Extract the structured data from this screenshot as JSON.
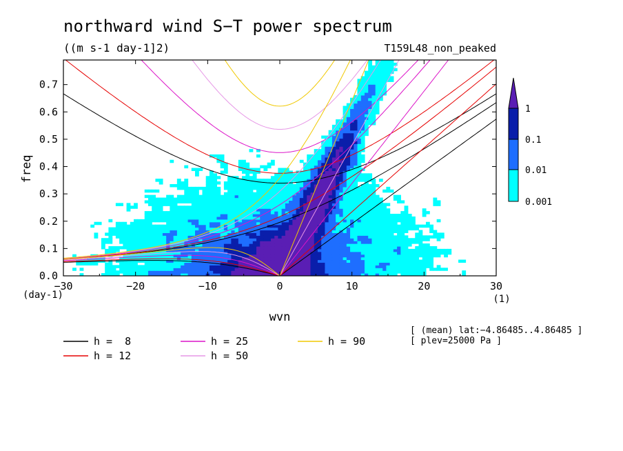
{
  "chart_data": {
    "type": "heatmap",
    "title": "northward wind S−T power spectrum",
    "subtitle": "((m s-1 day-1]2)",
    "run_label": "T159L48_non_peaked",
    "xlabel": "wvn",
    "ylabel": "freq",
    "x_unit": "(1)",
    "y_unit": "(day-1)",
    "xlim": [
      -30,
      30
    ],
    "ylim": [
      0,
      0.79
    ],
    "x_ticks": [
      -30,
      -20,
      -10,
      0,
      10,
      20,
      30
    ],
    "x_tick_labels": [
      "−30",
      "−20",
      "−10",
      "0",
      "10",
      "20",
      "30"
    ],
    "y_ticks": [
      0,
      0.1,
      0.2,
      0.3,
      0.4,
      0.5,
      0.6,
      0.7
    ],
    "y_tick_labels": [
      "0.0",
      "0.1",
      "0.2",
      "0.3",
      "0.4",
      "0.5",
      "0.6",
      "0.7"
    ],
    "colorbar": {
      "levels": [
        0.001,
        0.01,
        0.1,
        1
      ],
      "labels": [
        "0.001",
        "0.01",
        "0.1",
        "1"
      ],
      "colors": [
        "#00ffff",
        "#1e6eff",
        "#0a1eaa",
        "#5a1eb4"
      ]
    },
    "dispersion_curves": [
      {
        "name": "h =  8",
        "h": 8,
        "color": "#000000"
      },
      {
        "name": "h = 12",
        "h": 12,
        "color": "#e60000"
      },
      {
        "name": "h = 25",
        "h": 25,
        "color": "#dc14c8"
      },
      {
        "name": "h = 50",
        "h": 50,
        "color": "#e696e6"
      },
      {
        "name": "h = 90",
        "h": 90,
        "color": "#f0c800"
      }
    ],
    "annotations": [
      "[ (mean) lat:−4.86485..4.86485 ]",
      "[ plev=25000 Pa ]"
    ]
  }
}
